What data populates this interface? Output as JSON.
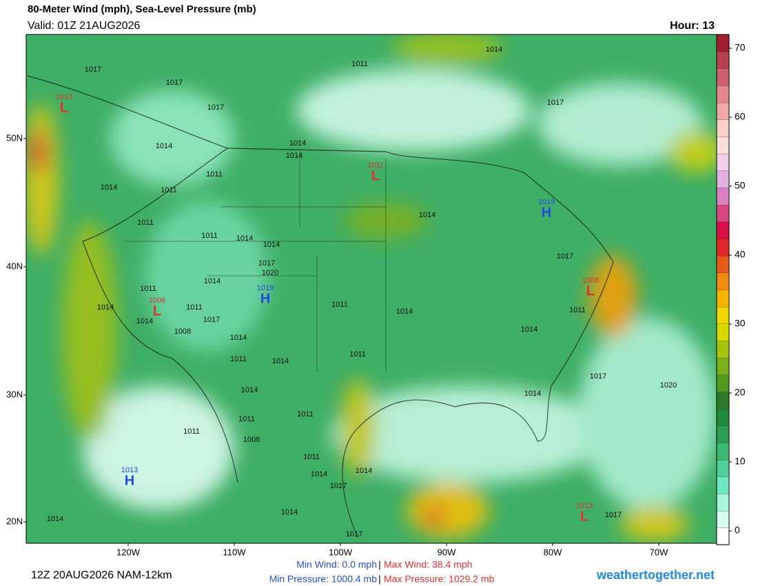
{
  "header": {
    "title": "80-Meter Wind (mph), Sea-Level Pressure (mb)",
    "valid": "Valid: 01Z 21AUG2026",
    "hour": "Hour: 13"
  },
  "map": {
    "lat_labels": [
      "50N",
      "40N",
      "30N",
      "20N"
    ],
    "lon_labels": [
      "120W",
      "110W",
      "100W",
      "90W",
      "80W",
      "70W"
    ],
    "pressure_centers": [
      {
        "letter": "L",
        "value": 1013
      },
      {
        "letter": "L",
        "value": 1011
      },
      {
        "letter": "H",
        "value": 1019
      },
      {
        "letter": "H",
        "value": 1019
      },
      {
        "letter": "L",
        "value": 1006
      },
      {
        "letter": "L",
        "value": 1008
      },
      {
        "letter": "H",
        "value": 1013
      },
      {
        "letter": "L",
        "value": 1013
      }
    ],
    "isobar_labels": [
      1014,
      1011,
      1017,
      1017,
      1017,
      1017,
      1014,
      1014,
      1014,
      1014,
      1011,
      1011,
      1011,
      1011,
      1014,
      1014,
      1014,
      1017,
      1020,
      1011,
      1014,
      1014,
      1014,
      1011,
      1017,
      1008,
      1014,
      1011,
      1014,
      1011,
      1014,
      1011,
      1014,
      1011,
      1017,
      1017,
      1020,
      1014,
      1011,
      1011,
      1008,
      1011,
      1011,
      1014,
      1017,
      1014,
      1014,
      1014,
      1017,
      1014,
      1017
    ]
  },
  "colorbar": {
    "lim": [
      -2,
      72
    ],
    "ticks": [
      0,
      10,
      20,
      30,
      40,
      50,
      60,
      70
    ],
    "colors": [
      "#ffffff",
      "#d8fbf0",
      "#a6f5dc",
      "#6ee8c0",
      "#4fd09a",
      "#3cb873",
      "#2c9c52",
      "#1f8a3c",
      "#2a7a28",
      "#4f9a1e",
      "#7bb016",
      "#a8c40a",
      "#d6d800",
      "#f2d600",
      "#f5b400",
      "#f08a10",
      "#e85a1a",
      "#e02828",
      "#d8104a",
      "#d84880",
      "#d880c0",
      "#e0b0e0",
      "#f0d0e8",
      "#f8e0d8",
      "#f8d0c8",
      "#f0a8a8",
      "#e08888",
      "#cc6070",
      "#b84050",
      "#9c2030"
    ]
  },
  "footer": {
    "run": "12Z 20AUG2026 NAM-12km",
    "min_wind": "Min Wind:  0.0 mph",
    "max_wind": "Max Wind:  38.4 mph",
    "min_pressure": "Min Pressure: 1000.4 mb",
    "max_pressure": "Max Pressure: 1029.2 mb",
    "separator": "|",
    "site": "weathertogether.net"
  }
}
